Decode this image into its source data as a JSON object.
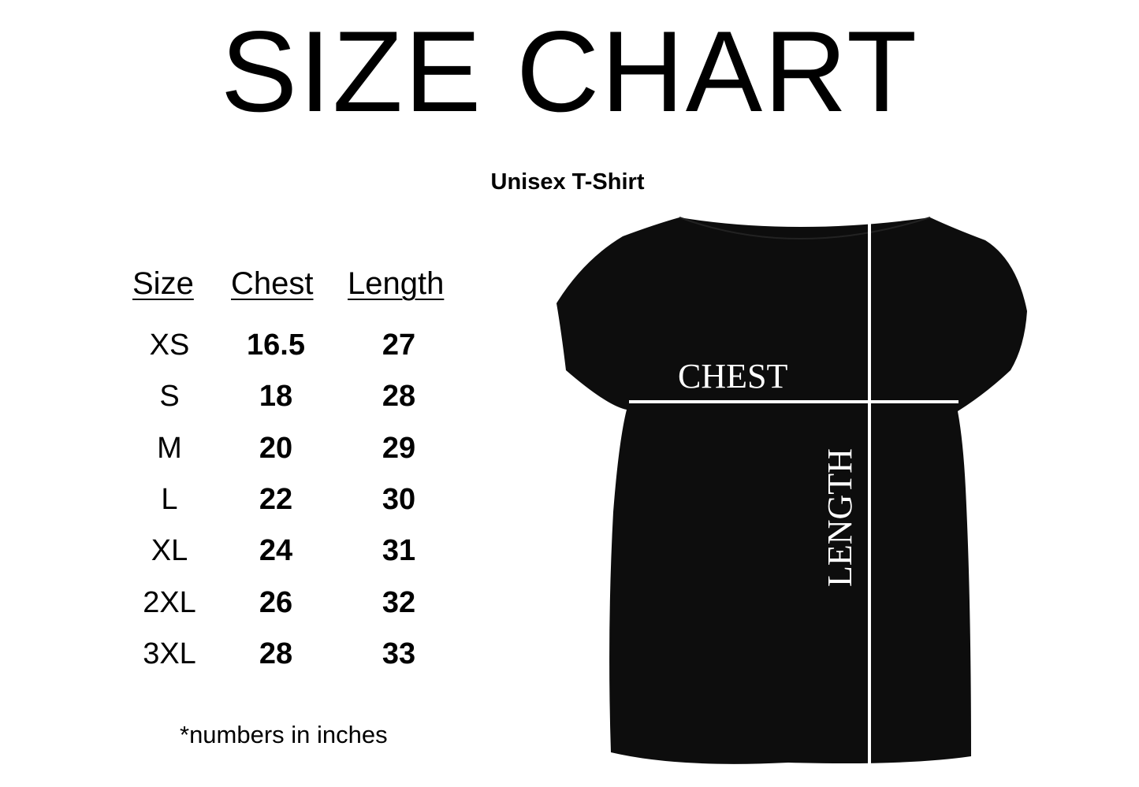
{
  "title": "SIZE CHART",
  "subtitle": "Unisex T-Shirt",
  "table": {
    "headers": [
      "Size",
      "Chest",
      "Length"
    ],
    "rows": [
      [
        "XS",
        "16.5",
        "27"
      ],
      [
        "S",
        "18",
        "28"
      ],
      [
        "M",
        "20",
        "29"
      ],
      [
        "L",
        "22",
        "30"
      ],
      [
        "XL",
        "24",
        "31"
      ],
      [
        "2XL",
        "26",
        "32"
      ],
      [
        "3XL",
        "28",
        "33"
      ]
    ]
  },
  "footnote": "*numbers in inches",
  "diagram": {
    "chest_label": "CHEST",
    "length_label": "LENGTH",
    "shirt_color": "#0d0d0d",
    "line_color": "#ffffff"
  }
}
